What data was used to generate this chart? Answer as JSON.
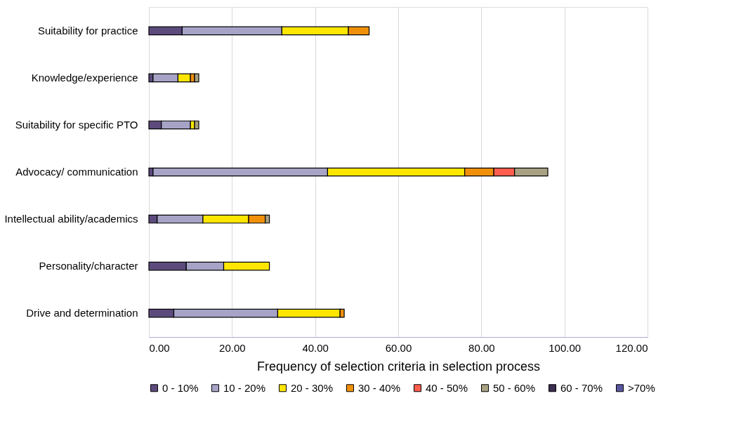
{
  "chart_data": {
    "type": "bar",
    "orientation": "horizontal",
    "stacked": true,
    "xlabel": "Frequency of selection criteria in selection process",
    "categories": [
      "Suitability for practice",
      "Knowledge/experience",
      "Suitability for specific PTO",
      "Advocacy/ communication",
      "Intellectual ability/academics",
      "Personality/character",
      "Drive and determination"
    ],
    "series": [
      {
        "name": "0 - 10%",
        "color": "#5c4a7d",
        "values": [
          8,
          1,
          3,
          1,
          2,
          9,
          6
        ]
      },
      {
        "name": "10 - 20%",
        "color": "#a6a3c7",
        "values": [
          24,
          6,
          7,
          42,
          11,
          9,
          25
        ]
      },
      {
        "name": "20 - 30%",
        "color": "#ffe600",
        "values": [
          16,
          3,
          1,
          33,
          11,
          11,
          15
        ]
      },
      {
        "name": "30 - 40%",
        "color": "#f0900a",
        "values": [
          5,
          1,
          null,
          7,
          4,
          null,
          1
        ]
      },
      {
        "name": "40 - 50%",
        "color": "#ff5e4e",
        "values": [
          null,
          null,
          null,
          5,
          null,
          null,
          null
        ]
      },
      {
        "name": "50 - 60%",
        "color": "#a8a182",
        "values": [
          null,
          1,
          1,
          8,
          1,
          null,
          null
        ]
      },
      {
        "name": "60 - 70%",
        "color": "#3b2d4f",
        "values": [
          null,
          null,
          null,
          null,
          null,
          null,
          null
        ]
      },
      {
        "name": ">70%",
        "color": "#5b56a0",
        "values": [
          null,
          null,
          null,
          null,
          null,
          null,
          null
        ]
      }
    ],
    "xlim": [
      0,
      120
    ],
    "xticks": [
      {
        "value": 0,
        "label": "0.00"
      },
      {
        "value": 20,
        "label": "20.00"
      },
      {
        "value": 40,
        "label": "40.00"
      },
      {
        "value": 60,
        "label": "60.00"
      },
      {
        "value": 80,
        "label": "80.00"
      },
      {
        "value": 100,
        "label": "100.00"
      },
      {
        "value": 120,
        "label": "120.00"
      }
    ],
    "grid": "x",
    "legend": "bottom"
  }
}
